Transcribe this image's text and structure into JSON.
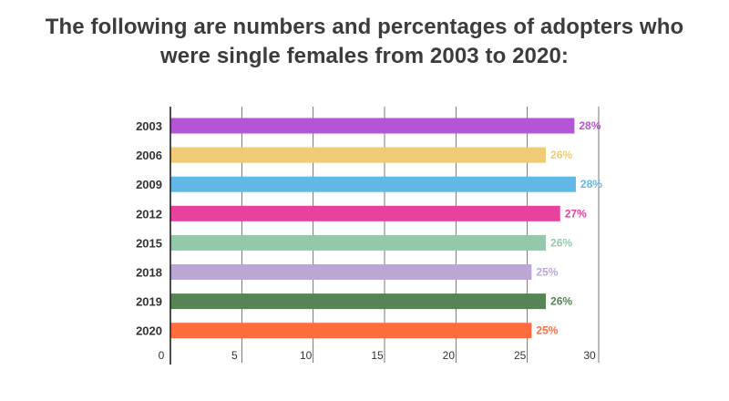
{
  "chart_data": {
    "type": "bar",
    "orientation": "horizontal",
    "title_lines": [
      "The following are numbers and percentages of adopters who",
      "were single females from 2003 to 2020:"
    ],
    "categories": [
      "2003",
      "2006",
      "2009",
      "2012",
      "2015",
      "2018",
      "2019",
      "2020"
    ],
    "values": [
      28.3,
      26.3,
      28.4,
      27.3,
      26.3,
      25.3,
      26.3,
      25.3
    ],
    "data_labels": [
      "28%",
      "26%",
      "28%",
      "27%",
      "26%",
      "25%",
      "26%",
      "25%"
    ],
    "colors": [
      "#b455d6",
      "#f0cb75",
      "#62b8e4",
      "#e6419d",
      "#94c8ab",
      "#bba6d4",
      "#568455",
      "#ff6c3e"
    ],
    "xlim": [
      0,
      30
    ],
    "xticks": [
      0,
      5,
      10,
      15,
      20,
      25,
      30
    ],
    "xlabel": "",
    "ylabel": "",
    "grid": "vertical",
    "legend": "none"
  }
}
